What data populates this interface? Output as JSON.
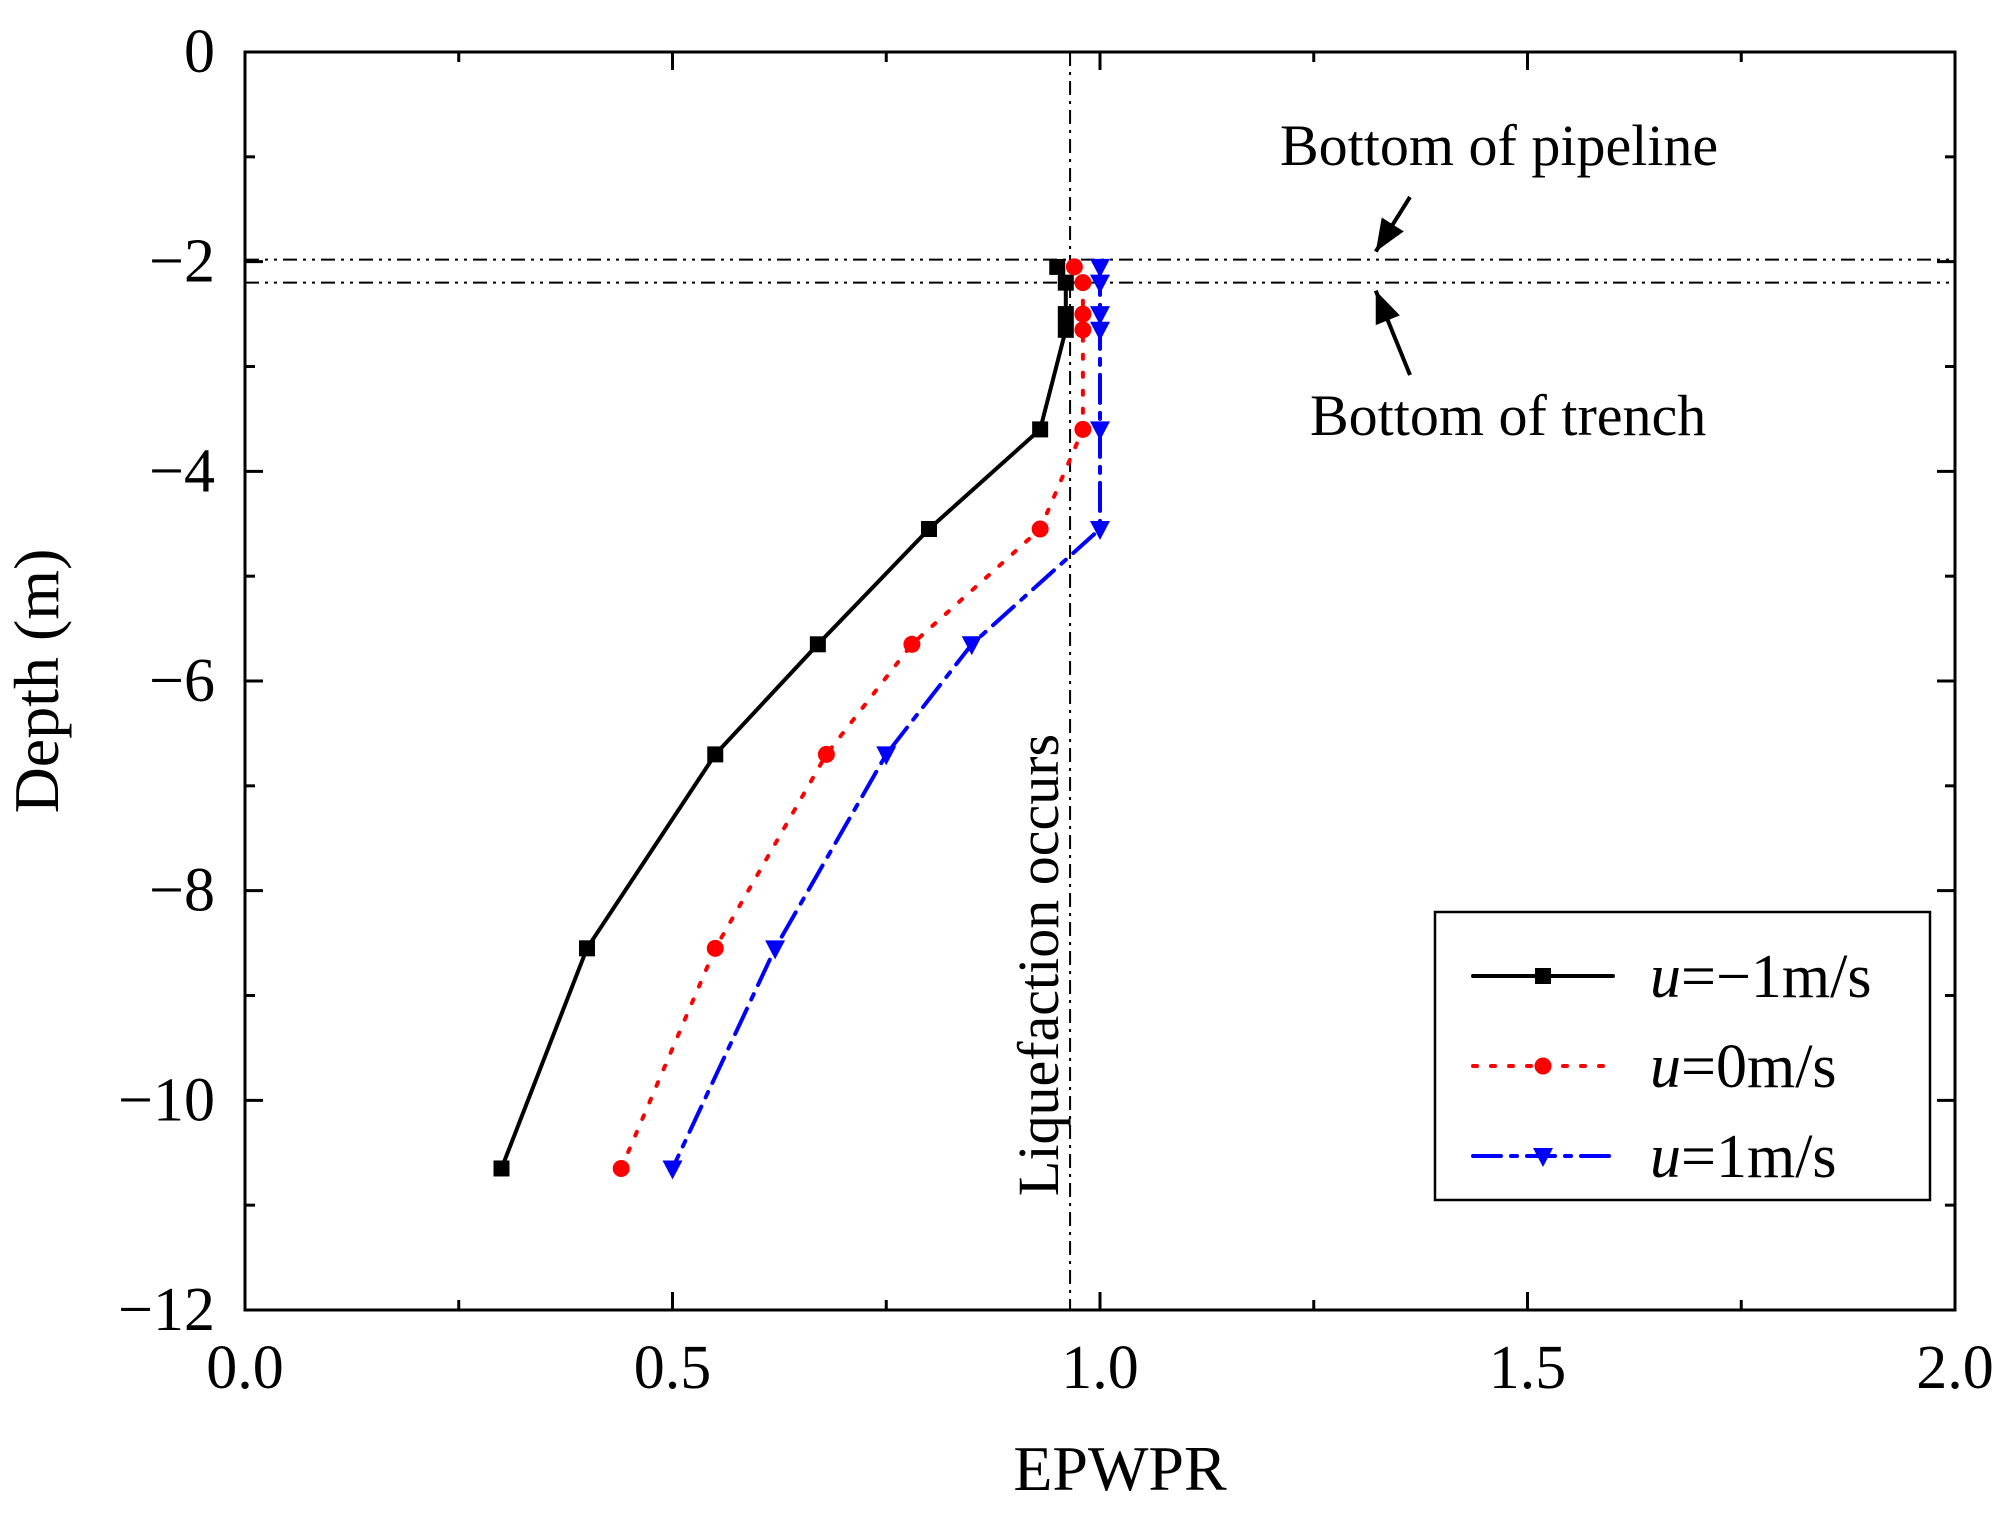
{
  "chart_data": {
    "type": "line",
    "title": "",
    "xlabel": "EPWPR",
    "ylabel": "Depth (m)",
    "xlim": [
      0.0,
      2.0
    ],
    "ylim": [
      -12,
      0
    ],
    "x_ticks": [
      0.0,
      0.5,
      1.0,
      1.5,
      2.0
    ],
    "x_tick_labels": [
      "0.0",
      "0.5",
      "1.0",
      "1.5",
      "2.0"
    ],
    "y_ticks": [
      0,
      -2,
      -4,
      -6,
      -8,
      -10,
      -12
    ],
    "y_tick_labels": [
      "0",
      "−2",
      "−4",
      "−6",
      "−8",
      "−10",
      "−12"
    ],
    "grid": false,
    "legend_position": "bottom-right",
    "series": [
      {
        "name_prefix": "u",
        "name_suffix": "=−1m/s",
        "color": "#000000",
        "line_style": "solid",
        "marker": "square",
        "points": [
          {
            "x": 0.95,
            "y": -2.05
          },
          {
            "x": 0.96,
            "y": -2.2
          },
          {
            "x": 0.96,
            "y": -2.5
          },
          {
            "x": 0.96,
            "y": -2.65
          },
          {
            "x": 0.93,
            "y": -3.6
          },
          {
            "x": 0.8,
            "y": -4.55
          },
          {
            "x": 0.67,
            "y": -5.65
          },
          {
            "x": 0.55,
            "y": -6.7
          },
          {
            "x": 0.4,
            "y": -8.55
          },
          {
            "x": 0.3,
            "y": -10.65
          }
        ]
      },
      {
        "name_prefix": "u",
        "name_suffix": "=0m/s",
        "color": "#ff0000",
        "line_style": "dotted",
        "marker": "circle",
        "points": [
          {
            "x": 0.97,
            "y": -2.05
          },
          {
            "x": 0.98,
            "y": -2.2
          },
          {
            "x": 0.98,
            "y": -2.5
          },
          {
            "x": 0.98,
            "y": -2.65
          },
          {
            "x": 0.98,
            "y": -3.6
          },
          {
            "x": 0.93,
            "y": -4.55
          },
          {
            "x": 0.78,
            "y": -5.65
          },
          {
            "x": 0.68,
            "y": -6.7
          },
          {
            "x": 0.55,
            "y": -8.55
          },
          {
            "x": 0.44,
            "y": -10.65
          }
        ]
      },
      {
        "name_prefix": "u",
        "name_suffix": "=1m/s",
        "color": "#0000ff",
        "line_style": "dash-dot",
        "marker": "triangle-down",
        "points": [
          {
            "x": 1.0,
            "y": -2.05
          },
          {
            "x": 1.0,
            "y": -2.2
          },
          {
            "x": 1.0,
            "y": -2.5
          },
          {
            "x": 1.0,
            "y": -2.65
          },
          {
            "x": 1.0,
            "y": -3.6
          },
          {
            "x": 1.0,
            "y": -4.55
          },
          {
            "x": 0.85,
            "y": -5.65
          },
          {
            "x": 0.75,
            "y": -6.7
          },
          {
            "x": 0.62,
            "y": -8.55
          },
          {
            "x": 0.5,
            "y": -10.65
          }
        ]
      }
    ],
    "reference_lines": [
      {
        "orientation": "vertical",
        "value": 0.965,
        "label": "Liquefaction occurs"
      },
      {
        "orientation": "horizontal",
        "value": -1.98,
        "label": "Bottom of pipeline"
      },
      {
        "orientation": "horizontal",
        "value": -2.2,
        "label": "Bottom of trench"
      }
    ],
    "annotations": [
      {
        "text": "Bottom of pipeline",
        "points_to_x": 1.25,
        "points_to_y": -1.98
      },
      {
        "text": "Bottom of trench",
        "points_to_x": 1.25,
        "points_to_y": -2.2
      }
    ]
  }
}
